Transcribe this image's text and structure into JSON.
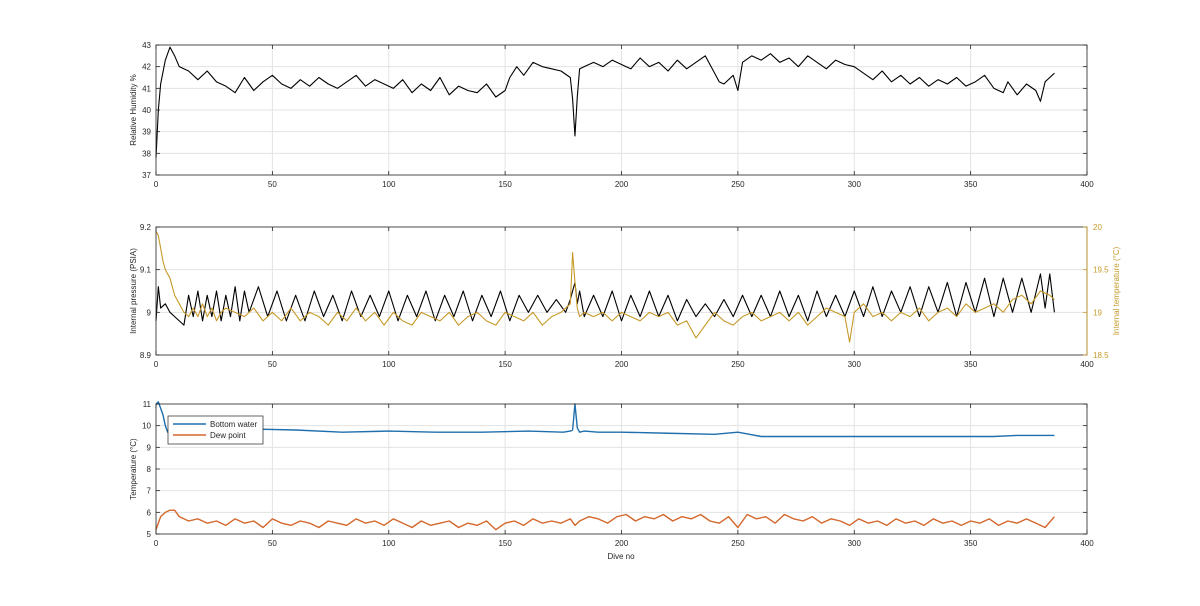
{
  "figure": {
    "x_label": "Dive no"
  },
  "chart_data": [
    {
      "type": "line",
      "id": "humidity",
      "title": "",
      "xlabel": "",
      "ylabel": "Relative Humidity %",
      "xlim": [
        0,
        400
      ],
      "ylim": [
        37,
        43
      ],
      "xticks": [
        0,
        50,
        100,
        150,
        200,
        250,
        300,
        350,
        400
      ],
      "yticks": [
        37,
        38,
        39,
        40,
        41,
        42,
        43
      ],
      "grid": true,
      "series": [
        {
          "color": "#000000",
          "x": [
            0,
            1,
            2,
            4,
            6,
            8,
            10,
            14,
            18,
            22,
            26,
            30,
            34,
            38,
            42,
            46,
            50,
            54,
            58,
            62,
            66,
            70,
            74,
            78,
            82,
            86,
            90,
            94,
            98,
            102,
            106,
            110,
            114,
            118,
            122,
            126,
            130,
            134,
            138,
            142,
            146,
            150,
            152,
            155,
            158,
            162,
            166,
            170,
            174,
            178,
            179,
            180,
            181,
            182,
            184,
            188,
            192,
            196,
            200,
            204,
            208,
            212,
            216,
            220,
            224,
            228,
            232,
            236,
            240,
            242,
            244,
            248,
            250,
            252,
            256,
            260,
            264,
            268,
            272,
            276,
            280,
            284,
            288,
            292,
            296,
            300,
            304,
            308,
            312,
            316,
            320,
            324,
            328,
            332,
            336,
            340,
            344,
            348,
            352,
            356,
            360,
            364,
            366,
            370,
            374,
            378,
            380,
            382,
            384,
            386
          ],
          "y": [
            37.8,
            40.0,
            41.2,
            42.3,
            42.9,
            42.5,
            42.0,
            41.8,
            41.4,
            41.8,
            41.3,
            41.1,
            40.8,
            41.5,
            40.9,
            41.3,
            41.6,
            41.2,
            41.0,
            41.4,
            41.1,
            41.5,
            41.2,
            41.0,
            41.3,
            41.6,
            41.1,
            41.4,
            41.2,
            41.0,
            41.4,
            40.8,
            41.2,
            40.9,
            41.5,
            40.7,
            41.1,
            40.9,
            40.8,
            41.2,
            40.6,
            40.9,
            41.5,
            42.0,
            41.6,
            42.2,
            42.0,
            41.9,
            41.8,
            41.5,
            40.5,
            38.8,
            40.6,
            41.9,
            42.0,
            42.2,
            42.0,
            42.3,
            42.1,
            41.9,
            42.4,
            42.0,
            42.2,
            41.8,
            42.3,
            41.9,
            42.2,
            42.5,
            41.7,
            41.3,
            41.2,
            41.6,
            40.9,
            42.2,
            42.5,
            42.3,
            42.6,
            42.2,
            42.4,
            42.0,
            42.5,
            42.2,
            41.9,
            42.3,
            42.1,
            42.0,
            41.7,
            41.4,
            41.8,
            41.3,
            41.6,
            41.2,
            41.5,
            41.1,
            41.4,
            41.2,
            41.5,
            41.1,
            41.3,
            41.6,
            41.0,
            40.8,
            41.3,
            40.7,
            41.2,
            40.9,
            40.4,
            41.3,
            41.5,
            41.7
          ]
        }
      ]
    },
    {
      "type": "line",
      "id": "pressure",
      "title": "",
      "xlabel": "",
      "ylabel": "Internal pressure (PSIA)",
      "ylabel_right": "Internal temperature (°C)",
      "xlim": [
        0,
        400
      ],
      "ylim": [
        8.9,
        9.2
      ],
      "ylim_right": [
        18.5,
        20
      ],
      "xticks": [
        0,
        50,
        100,
        150,
        200,
        250,
        300,
        350,
        400
      ],
      "yticks": [
        8.9,
        9,
        9.1,
        9.2
      ],
      "yticks_right": [
        18.5,
        19,
        19.5,
        20
      ],
      "right_color": "#c79a2a",
      "grid": true,
      "series": [
        {
          "axis": "left",
          "color": "#000000",
          "x": [
            0,
            1,
            2,
            4,
            6,
            8,
            10,
            12,
            14,
            16,
            18,
            20,
            22,
            24,
            26,
            28,
            30,
            32,
            34,
            36,
            38,
            40,
            44,
            48,
            52,
            56,
            60,
            64,
            68,
            72,
            76,
            80,
            84,
            88,
            92,
            96,
            100,
            104,
            108,
            112,
            116,
            120,
            124,
            128,
            132,
            136,
            140,
            144,
            148,
            152,
            156,
            160,
            164,
            168,
            172,
            176,
            178,
            180,
            181,
            182,
            184,
            188,
            192,
            196,
            200,
            204,
            208,
            212,
            216,
            220,
            224,
            228,
            232,
            236,
            240,
            244,
            248,
            252,
            256,
            260,
            264,
            268,
            272,
            276,
            280,
            284,
            288,
            292,
            296,
            300,
            304,
            308,
            312,
            316,
            320,
            324,
            328,
            332,
            336,
            340,
            344,
            348,
            352,
            356,
            360,
            364,
            368,
            372,
            376,
            380,
            382,
            384,
            386
          ],
          "y": [
            8.98,
            9.06,
            9.01,
            9.02,
            9.0,
            8.99,
            8.98,
            8.97,
            9.04,
            8.99,
            9.05,
            8.98,
            9.04,
            8.99,
            9.05,
            8.98,
            9.04,
            8.99,
            9.06,
            8.98,
            9.05,
            9.0,
            9.06,
            8.99,
            9.05,
            8.98,
            9.04,
            8.98,
            9.05,
            8.99,
            9.04,
            8.98,
            9.05,
            8.99,
            9.04,
            8.99,
            9.05,
            8.98,
            9.04,
            8.99,
            9.05,
            8.98,
            9.04,
            8.99,
            9.05,
            8.98,
            9.04,
            8.99,
            9.05,
            8.98,
            9.04,
            9.0,
            9.04,
            9.0,
            9.03,
            9.0,
            9.03,
            9.07,
            9.02,
            9.05,
            8.99,
            9.04,
            8.99,
            9.05,
            8.98,
            9.04,
            8.99,
            9.05,
            8.99,
            9.04,
            8.98,
            9.03,
            8.99,
            9.02,
            8.99,
            9.03,
            8.99,
            9.04,
            8.99,
            9.04,
            8.99,
            9.05,
            8.99,
            9.04,
            8.98,
            9.05,
            8.99,
            9.04,
            8.99,
            9.05,
            8.99,
            9.06,
            8.99,
            9.05,
            9.0,
            9.06,
            8.99,
            9.06,
            9.0,
            9.07,
            8.99,
            9.07,
            9.0,
            9.08,
            8.99,
            9.08,
            9.0,
            9.08,
            9.0,
            9.09,
            9.01,
            9.09,
            9.0
          ]
        },
        {
          "axis": "right",
          "color": "#c79a2a",
          "x": [
            0,
            1,
            2,
            3,
            4,
            6,
            8,
            10,
            12,
            14,
            16,
            18,
            20,
            22,
            24,
            26,
            28,
            30,
            34,
            38,
            42,
            46,
            50,
            54,
            58,
            62,
            66,
            70,
            74,
            78,
            82,
            86,
            90,
            94,
            98,
            102,
            106,
            110,
            114,
            118,
            122,
            126,
            130,
            134,
            138,
            142,
            146,
            150,
            154,
            158,
            162,
            166,
            170,
            174,
            178,
            179,
            180,
            181,
            182,
            184,
            188,
            192,
            196,
            200,
            204,
            208,
            212,
            216,
            220,
            224,
            228,
            232,
            236,
            240,
            244,
            248,
            252,
            256,
            260,
            264,
            268,
            272,
            276,
            280,
            284,
            288,
            292,
            296,
            298,
            300,
            304,
            308,
            312,
            316,
            320,
            324,
            328,
            332,
            336,
            340,
            344,
            348,
            352,
            356,
            360,
            364,
            368,
            372,
            376,
            380,
            384,
            386
          ],
          "y": [
            19.95,
            19.9,
            19.75,
            19.6,
            19.5,
            19.4,
            19.2,
            19.1,
            19.0,
            18.95,
            19.05,
            18.95,
            19.1,
            18.95,
            19.05,
            18.9,
            19.0,
            19.05,
            19.0,
            18.95,
            19.05,
            18.9,
            19.0,
            18.9,
            19.05,
            18.9,
            19.0,
            18.95,
            18.85,
            19.0,
            18.9,
            19.05,
            18.9,
            19.0,
            18.85,
            19.0,
            18.9,
            18.85,
            19.0,
            18.95,
            18.9,
            19.0,
            18.85,
            18.95,
            19.0,
            18.9,
            18.85,
            19.0,
            18.95,
            18.9,
            19.0,
            18.85,
            18.95,
            19.0,
            19.1,
            19.7,
            19.35,
            19.05,
            18.95,
            19.0,
            18.95,
            19.0,
            18.9,
            19.0,
            18.95,
            18.9,
            19.0,
            18.95,
            19.0,
            18.85,
            18.9,
            18.7,
            18.85,
            19.0,
            18.9,
            18.85,
            18.95,
            19.0,
            18.9,
            18.95,
            19.0,
            18.9,
            19.0,
            18.85,
            18.95,
            19.05,
            19.0,
            18.95,
            18.65,
            19.0,
            19.1,
            18.95,
            19.0,
            18.9,
            19.0,
            18.95,
            19.05,
            18.9,
            19.0,
            19.05,
            18.95,
            19.1,
            19.0,
            19.05,
            19.1,
            19.0,
            19.15,
            19.2,
            19.1,
            19.25,
            19.2,
            19.15
          ]
        }
      ]
    },
    {
      "type": "line",
      "id": "temperature",
      "title": "",
      "xlabel": "Dive no",
      "ylabel": "Temperature (°C)",
      "xlim": [
        0,
        400
      ],
      "ylim": [
        5,
        11
      ],
      "xticks": [
        0,
        50,
        100,
        150,
        200,
        250,
        300,
        350,
        400
      ],
      "yticks": [
        5,
        6,
        7,
        8,
        9,
        10,
        11
      ],
      "grid": true,
      "legend": "top-left",
      "series": [
        {
          "name": "Bottom water",
          "color": "#1f6fae",
          "x": [
            0,
            1,
            2,
            3,
            4,
            5,
            6,
            10,
            20,
            40,
            60,
            80,
            100,
            120,
            140,
            160,
            175,
            178,
            179,
            180,
            181,
            182,
            184,
            190,
            200,
            220,
            240,
            250,
            255,
            260,
            270,
            300,
            330,
            360,
            370,
            386
          ],
          "y": [
            11.0,
            11.1,
            10.8,
            10.5,
            10.0,
            9.7,
            9.9,
            9.85,
            9.8,
            9.85,
            9.8,
            9.7,
            9.75,
            9.7,
            9.7,
            9.75,
            9.7,
            9.75,
            9.8,
            11.0,
            9.9,
            9.7,
            9.75,
            9.7,
            9.7,
            9.65,
            9.6,
            9.7,
            9.6,
            9.5,
            9.5,
            9.5,
            9.5,
            9.5,
            9.55,
            9.55
          ]
        },
        {
          "name": "Dew point",
          "color": "#d4672b",
          "x": [
            0,
            2,
            4,
            6,
            8,
            10,
            14,
            18,
            22,
            26,
            30,
            34,
            38,
            42,
            46,
            50,
            54,
            58,
            62,
            66,
            70,
            74,
            78,
            82,
            86,
            90,
            94,
            98,
            102,
            106,
            110,
            114,
            118,
            122,
            126,
            130,
            134,
            138,
            142,
            146,
            150,
            154,
            158,
            162,
            166,
            170,
            174,
            178,
            180,
            182,
            186,
            190,
            194,
            198,
            202,
            206,
            210,
            214,
            218,
            222,
            226,
            230,
            234,
            238,
            242,
            246,
            250,
            254,
            258,
            262,
            266,
            270,
            274,
            278,
            282,
            286,
            290,
            294,
            298,
            302,
            306,
            310,
            314,
            318,
            322,
            326,
            330,
            334,
            338,
            342,
            346,
            350,
            354,
            358,
            362,
            366,
            370,
            374,
            378,
            382,
            386
          ],
          "y": [
            5.2,
            5.8,
            6.0,
            6.1,
            6.1,
            5.8,
            5.6,
            5.7,
            5.5,
            5.6,
            5.4,
            5.7,
            5.5,
            5.6,
            5.3,
            5.7,
            5.5,
            5.4,
            5.6,
            5.5,
            5.3,
            5.6,
            5.5,
            5.4,
            5.7,
            5.5,
            5.6,
            5.4,
            5.7,
            5.5,
            5.3,
            5.6,
            5.4,
            5.5,
            5.6,
            5.3,
            5.5,
            5.4,
            5.6,
            5.2,
            5.5,
            5.6,
            5.4,
            5.7,
            5.5,
            5.6,
            5.5,
            5.7,
            5.4,
            5.6,
            5.8,
            5.7,
            5.5,
            5.8,
            5.9,
            5.6,
            5.8,
            5.7,
            5.9,
            5.6,
            5.8,
            5.7,
            5.9,
            5.6,
            5.5,
            5.8,
            5.3,
            5.9,
            5.7,
            5.8,
            5.5,
            5.9,
            5.7,
            5.6,
            5.8,
            5.5,
            5.7,
            5.6,
            5.4,
            5.7,
            5.5,
            5.6,
            5.4,
            5.7,
            5.5,
            5.6,
            5.4,
            5.7,
            5.5,
            5.6,
            5.4,
            5.6,
            5.5,
            5.7,
            5.4,
            5.6,
            5.5,
            5.7,
            5.5,
            5.3,
            5.8
          ]
        }
      ]
    }
  ]
}
